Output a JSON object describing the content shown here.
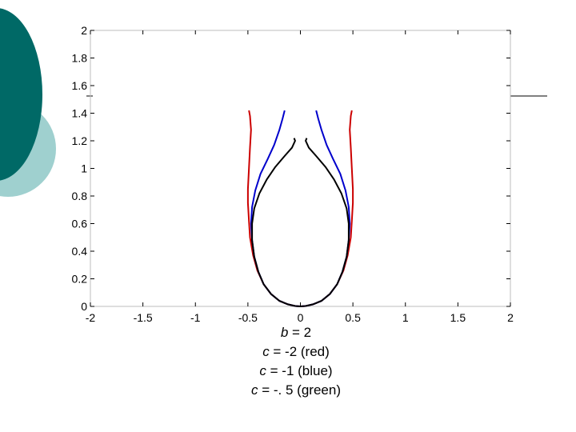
{
  "theme": {
    "dark_teal": "#006966",
    "light_teal": "#9fd0cf",
    "accent_line": "#000000"
  },
  "chart_data": {
    "type": "line",
    "title": "",
    "xlabel": "",
    "ylabel": "",
    "xlim": [
      -2,
      2
    ],
    "ylim": [
      0,
      2
    ],
    "x_ticks": [
      "-2",
      "-1.5",
      "-1",
      "-0.5",
      "0",
      "0.5",
      "1",
      "1.5",
      "2"
    ],
    "y_ticks": [
      "0",
      "0.2",
      "0.4",
      "0.6",
      "0.8",
      "1",
      "1.2",
      "1.4",
      "1.6",
      "1.8",
      "2"
    ],
    "grid": false,
    "series": [
      {
        "color": "#cc0000",
        "points": [
          [
            0,
            0
          ],
          [
            -0.05,
            0.003
          ],
          [
            -0.12,
            0.015
          ],
          [
            -0.2,
            0.04
          ],
          [
            -0.28,
            0.09
          ],
          [
            -0.35,
            0.16
          ],
          [
            -0.41,
            0.26
          ],
          [
            -0.45,
            0.37
          ],
          [
            -0.48,
            0.5
          ],
          [
            -0.49,
            0.62
          ],
          [
            -0.5,
            0.75
          ],
          [
            -0.5,
            0.85
          ],
          [
            -0.49,
            1.0
          ],
          [
            -0.48,
            1.15
          ],
          [
            -0.47,
            1.28
          ],
          [
            -0.48,
            1.38
          ],
          [
            -0.49,
            1.42
          ]
        ]
      },
      {
        "color": "#0000cc",
        "points": [
          [
            0,
            0
          ],
          [
            -0.05,
            0.003
          ],
          [
            -0.12,
            0.015
          ],
          [
            -0.2,
            0.04
          ],
          [
            -0.28,
            0.09
          ],
          [
            -0.35,
            0.16
          ],
          [
            -0.4,
            0.25
          ],
          [
            -0.44,
            0.36
          ],
          [
            -0.46,
            0.48
          ],
          [
            -0.47,
            0.6
          ],
          [
            -0.46,
            0.72
          ],
          [
            -0.43,
            0.84
          ],
          [
            -0.38,
            0.96
          ],
          [
            -0.31,
            1.07
          ],
          [
            -0.25,
            1.17
          ],
          [
            -0.2,
            1.28
          ],
          [
            -0.17,
            1.36
          ],
          [
            -0.15,
            1.42
          ]
        ]
      },
      {
        "color": "#000000",
        "points": [
          [
            0,
            0
          ],
          [
            -0.05,
            0.003
          ],
          [
            -0.12,
            0.015
          ],
          [
            -0.2,
            0.04
          ],
          [
            -0.28,
            0.09
          ],
          [
            -0.35,
            0.16
          ],
          [
            -0.4,
            0.25
          ],
          [
            -0.44,
            0.36
          ],
          [
            -0.46,
            0.48
          ],
          [
            -0.46,
            0.6
          ],
          [
            -0.44,
            0.71
          ],
          [
            -0.39,
            0.82
          ],
          [
            -0.32,
            0.92
          ],
          [
            -0.24,
            1.01
          ],
          [
            -0.15,
            1.09
          ],
          [
            -0.08,
            1.15
          ],
          [
            -0.05,
            1.2
          ],
          [
            -0.06,
            1.22
          ]
        ]
      }
    ]
  },
  "caption": {
    "line1_var": "b",
    "line1_rest": " = 2",
    "line2_var": "c",
    "line2_rest": " = -2 (red)",
    "line3_var": "c",
    "line3_rest": " = -1 (blue)",
    "line4_var": "c",
    "line4_rest": " = -. 5 (green)"
  }
}
